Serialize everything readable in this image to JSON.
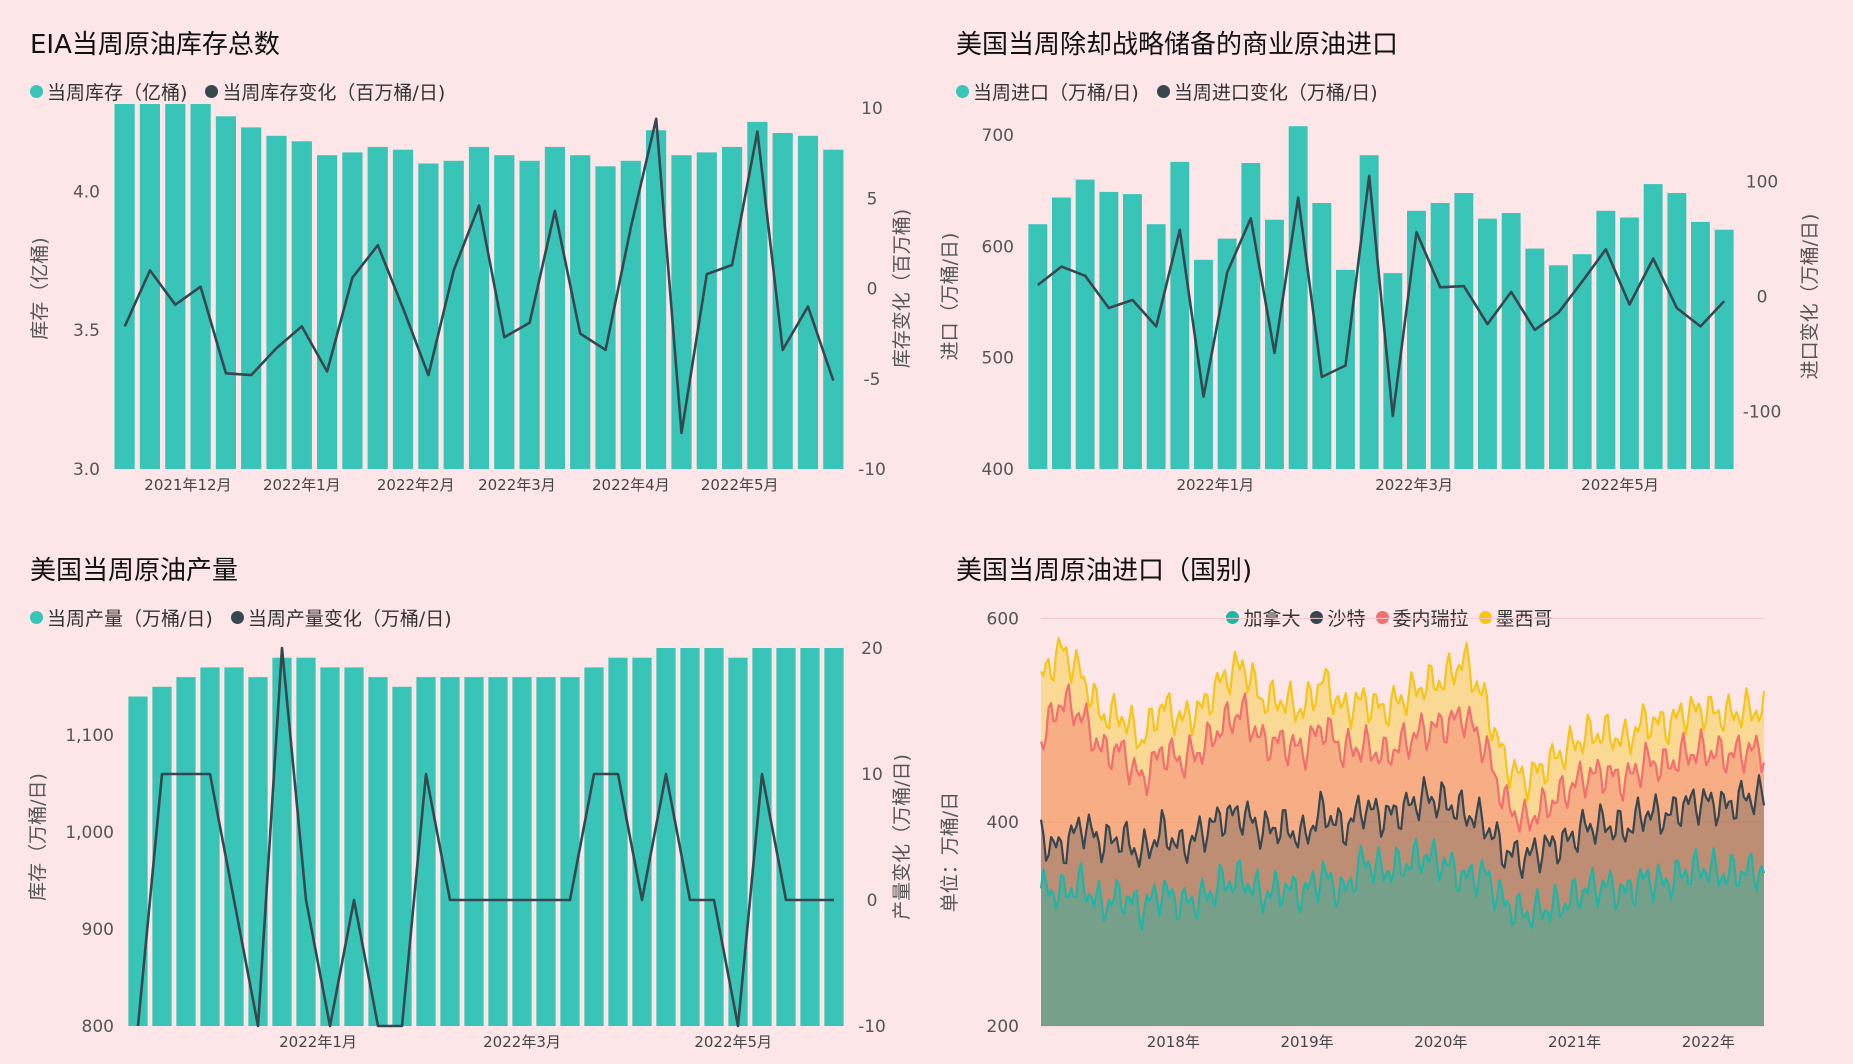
{
  "colors": {
    "background": "#fde6e7",
    "bar": "#38c5b8",
    "line": "#37474f",
    "canada": "#1fb5a7",
    "saudi": "#37474f",
    "venezuela": "#f36f6f",
    "mexico": "#f5c518"
  },
  "chart_data": [
    {
      "id": "inventory",
      "type": "bar+line",
      "title": "EIA当周原油库存总数",
      "legend": [
        "当周库存（亿桶)",
        "当周库存变化（百万桶/日)"
      ],
      "ylabel_left": "库存（亿桶)",
      "ylabel_right": "库存变化（百万桶)",
      "ylim_left": [
        3.0,
        4.3
      ],
      "ylim_right": [
        -10,
        10
      ],
      "yticks_left": [
        "3.0",
        "3.5",
        "4.0"
      ],
      "yticks_right": [
        "-10",
        "-5",
        "0",
        "5",
        "10"
      ],
      "xtick_labels": [
        {
          "label": "2021年12月",
          "index": 2.5
        },
        {
          "label": "2022年1月",
          "index": 7
        },
        {
          "label": "2022年2月",
          "index": 11.5
        },
        {
          "label": "2022年3月",
          "index": 15.5
        },
        {
          "label": "2022年4月",
          "index": 20
        },
        {
          "label": "2022年5月",
          "index": 24.3
        }
      ],
      "bars": [
        4.33,
        4.34,
        4.33,
        4.33,
        4.27,
        4.23,
        4.2,
        4.18,
        4.13,
        4.14,
        4.16,
        4.15,
        4.1,
        4.11,
        4.16,
        4.13,
        4.11,
        4.16,
        4.13,
        4.09,
        4.11,
        4.22,
        4.13,
        4.14,
        4.16,
        4.25,
        4.21,
        4.2,
        4.15
      ],
      "line": [
        -2.1,
        1.0,
        -0.9,
        0.1,
        -4.7,
        -4.8,
        -3.3,
        -2.1,
        -4.6,
        0.6,
        2.4,
        -1.1,
        -4.8,
        1.0,
        4.6,
        -2.7,
        -1.9,
        4.3,
        -2.5,
        -3.4,
        3.4,
        9.4,
        -8.0,
        0.8,
        1.3,
        8.7,
        -3.4,
        -1.0,
        -5.1
      ]
    },
    {
      "id": "imports",
      "type": "bar+line",
      "title": "美国当周除却战略储备的商业原油进口",
      "legend": [
        "当周进口（万桶/日)",
        "当周进口变化（万桶/日)"
      ],
      "ylabel_left": "进口（万桶/日)",
      "ylabel_right": "进口变化（万桶/日)",
      "ylim_left": [
        400,
        710
      ],
      "ylim_right": [
        -150,
        150
      ],
      "yticks_left": [
        "400",
        "500",
        "600",
        "700"
      ],
      "yticks_right": [
        "-100",
        "0",
        "100"
      ],
      "xtick_labels": [
        {
          "label": "2022年1月",
          "index": 7.5
        },
        {
          "label": "2022年3月",
          "index": 15.9
        },
        {
          "label": "2022年5月",
          "index": 24.6
        }
      ],
      "bars": [
        620,
        644,
        660,
        649,
        647,
        620,
        676,
        588,
        607,
        675,
        624,
        708,
        639,
        579,
        682,
        576,
        632,
        639,
        648,
        625,
        630,
        598,
        583,
        593,
        632,
        626,
        656,
        648,
        622,
        615
      ],
      "line": [
        10,
        26,
        18,
        -10,
        -3,
        -26,
        58,
        -87,
        21,
        68,
        -49,
        86,
        -70,
        -60,
        105,
        -104,
        56,
        8,
        9,
        -24,
        4,
        -29,
        -14,
        13,
        41,
        -7,
        33,
        -10,
        -26,
        -4
      ]
    },
    {
      "id": "production",
      "type": "bar+line",
      "title": "美国当周原油产量",
      "legend": [
        "当周产量（万桶/日)",
        "当周产量变化（万桶/日)"
      ],
      "ylabel_left": "库存（万桶/日)",
      "ylabel_right": "产量变化（万桶/日)",
      "ylim_left": [
        800,
        1190
      ],
      "ylim_right": [
        -10,
        20
      ],
      "yticks_left": [
        "800",
        "900",
        "1,000",
        "1,100"
      ],
      "yticks_right": [
        "-10",
        "0",
        "10",
        "20"
      ],
      "xtick_labels": [
        {
          "label": "2022年1月",
          "index": 7.5
        },
        {
          "label": "2022年3月",
          "index": 16
        },
        {
          "label": "2022年5月",
          "index": 24.8
        }
      ],
      "bars": [
        1140,
        1150,
        1160,
        1170,
        1170,
        1160,
        1180,
        1180,
        1170,
        1170,
        1160,
        1150,
        1160,
        1160,
        1160,
        1160,
        1160,
        1160,
        1160,
        1170,
        1180,
        1180,
        1190,
        1190,
        1190,
        1180,
        1190,
        1190,
        1190,
        1190
      ],
      "line": [
        -10,
        10,
        10,
        10,
        0,
        -10,
        20,
        0,
        -10,
        0,
        -10,
        -10,
        10,
        0,
        0,
        0,
        0,
        0,
        0,
        10,
        10,
        0,
        10,
        0,
        0,
        -10,
        10,
        0,
        0,
        0
      ]
    },
    {
      "id": "imports_by_country",
      "type": "area",
      "title": "美国当周原油进口（国别)",
      "legend": [
        "加拿大",
        "沙特",
        "委内瑞拉",
        "墨西哥"
      ],
      "ylabel": "单位：万桶/日",
      "ylim": [
        200,
        620
      ],
      "yticks": [
        "200",
        "400",
        "600"
      ],
      "xtick_labels": [
        "2018年",
        "2019年",
        "2020年",
        "2021年",
        "2022年"
      ],
      "x_range": [
        "2017-01",
        "2022-06"
      ],
      "series": [
        {
          "name": "加拿大",
          "values": [
            335,
            330,
            340,
            318,
            328,
            315,
            332,
            320,
            325,
            340,
            345,
            328,
            336,
            330,
            348,
            330,
            362,
            352,
            358,
            368,
            360,
            345,
            350,
            320,
            310,
            315,
            320,
            335,
            338,
            330,
            345,
            340,
            352,
            355,
            348,
            352
          ]
        },
        {
          "name": "沙特",
          "values": [
            385,
            372,
            398,
            380,
            385,
            368,
            392,
            375,
            390,
            405,
            408,
            392,
            396,
            385,
            412,
            392,
            415,
            405,
            412,
            425,
            420,
            410,
            400,
            370,
            365,
            375,
            380,
            395,
            398,
            392,
            410,
            405,
            418,
            420,
            415,
            425
          ]
        },
        {
          "name": "委内瑞拉",
          "values": [
            480,
            520,
            505,
            470,
            470,
            440,
            470,
            460,
            472,
            495,
            510,
            478,
            478,
            470,
            495,
            470,
            475,
            465,
            478,
            490,
            495,
            505,
            475,
            420,
            400,
            415,
            430,
            445,
            448,
            440,
            460,
            455,
            468,
            470,
            465,
            470
          ]
        },
        {
          "name": "墨西哥",
          "values": [
            540,
            570,
            545,
            505,
            505,
            480,
            515,
            500,
            512,
            540,
            555,
            520,
            520,
            510,
            540,
            510,
            520,
            510,
            522,
            535,
            540,
            560,
            520,
            460,
            440,
            455,
            470,
            485,
            488,
            480,
            500,
            495,
            508,
            510,
            505,
            510
          ]
        }
      ]
    }
  ]
}
